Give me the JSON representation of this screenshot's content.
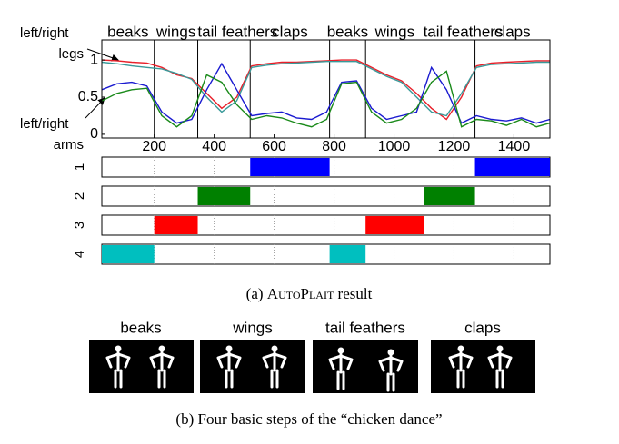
{
  "chart_data": {
    "type": "line",
    "x": [
      25,
      75,
      125,
      175,
      225,
      275,
      325,
      375,
      425,
      475,
      525,
      575,
      625,
      675,
      725,
      775,
      825,
      875,
      925,
      975,
      1025,
      1075,
      1125,
      1175,
      1225,
      1275,
      1325,
      1375,
      1425,
      1475,
      1520
    ],
    "series": [
      {
        "color": "#e8202a",
        "values": [
          1.0,
          0.99,
          0.97,
          0.96,
          0.9,
          0.8,
          0.75,
          0.55,
          0.35,
          0.5,
          0.92,
          0.95,
          0.97,
          0.97,
          0.98,
          0.99,
          1.0,
          1.0,
          0.9,
          0.8,
          0.72,
          0.55,
          0.35,
          0.2,
          0.5,
          0.92,
          0.96,
          0.97,
          0.98,
          0.99,
          0.99
        ]
      },
      {
        "color": "#3a9a9a",
        "values": [
          0.97,
          0.95,
          0.92,
          0.9,
          0.88,
          0.82,
          0.74,
          0.5,
          0.3,
          0.45,
          0.9,
          0.93,
          0.95,
          0.96,
          0.97,
          0.98,
          0.98,
          0.98,
          0.88,
          0.78,
          0.7,
          0.5,
          0.3,
          0.25,
          0.55,
          0.9,
          0.94,
          0.95,
          0.96,
          0.97,
          0.97
        ]
      },
      {
        "color": "#1a1ad0",
        "values": [
          0.6,
          0.68,
          0.7,
          0.65,
          0.3,
          0.15,
          0.2,
          0.6,
          0.95,
          0.6,
          0.25,
          0.28,
          0.3,
          0.22,
          0.2,
          0.3,
          0.7,
          0.72,
          0.35,
          0.2,
          0.25,
          0.3,
          0.9,
          0.6,
          0.15,
          0.25,
          0.2,
          0.18,
          0.22,
          0.15,
          0.2
        ]
      },
      {
        "color": "#1a8a1a",
        "values": [
          0.45,
          0.55,
          0.6,
          0.62,
          0.25,
          0.1,
          0.25,
          0.8,
          0.7,
          0.4,
          0.2,
          0.25,
          0.22,
          0.15,
          0.1,
          0.2,
          0.68,
          0.7,
          0.3,
          0.15,
          0.2,
          0.35,
          0.7,
          0.85,
          0.1,
          0.2,
          0.18,
          0.12,
          0.2,
          0.1,
          0.15
        ]
      }
    ],
    "xlim": [
      25,
      1520
    ],
    "xticks": [
      200,
      400,
      600,
      800,
      1000,
      1200,
      1400
    ],
    "ylim": [
      -0.05,
      1.27
    ],
    "yticks": [
      0,
      0.5,
      1
    ],
    "annotations": {
      "legs_line1": "left/right",
      "legs_line2": "legs",
      "arms_line1": "left/right",
      "arms_line2": "arms"
    },
    "regimes": [
      {
        "label": "1",
        "color": "#0000ff"
      },
      {
        "label": "2",
        "color": "#008000"
      },
      {
        "label": "3",
        "color": "#ff0000"
      },
      {
        "label": "4",
        "color": "#00bfbf"
      }
    ],
    "segments": [
      {
        "label": "beaks",
        "start": 25,
        "end": 200,
        "regime": 4
      },
      {
        "label": "wings",
        "start": 200,
        "end": 345,
        "regime": 3
      },
      {
        "label": "tail feathers",
        "start": 345,
        "end": 520,
        "regime": 2
      },
      {
        "label": "claps",
        "start": 520,
        "end": 785,
        "regime": 1
      },
      {
        "label": "beaks",
        "start": 785,
        "end": 905,
        "regime": 4
      },
      {
        "label": "wings",
        "start": 905,
        "end": 1100,
        "regime": 3
      },
      {
        "label": "tail feathers",
        "start": 1100,
        "end": 1270,
        "regime": 2
      },
      {
        "label": "claps",
        "start": 1270,
        "end": 1520,
        "regime": 1
      }
    ]
  },
  "caption_a": {
    "prefix": "(a)",
    "name": "AutoPlait",
    "suffix": "result"
  },
  "steps": [
    "beaks",
    "wings",
    "tail feathers",
    "claps"
  ],
  "caption_b": "(b) Four basic steps of the “chicken dance”"
}
